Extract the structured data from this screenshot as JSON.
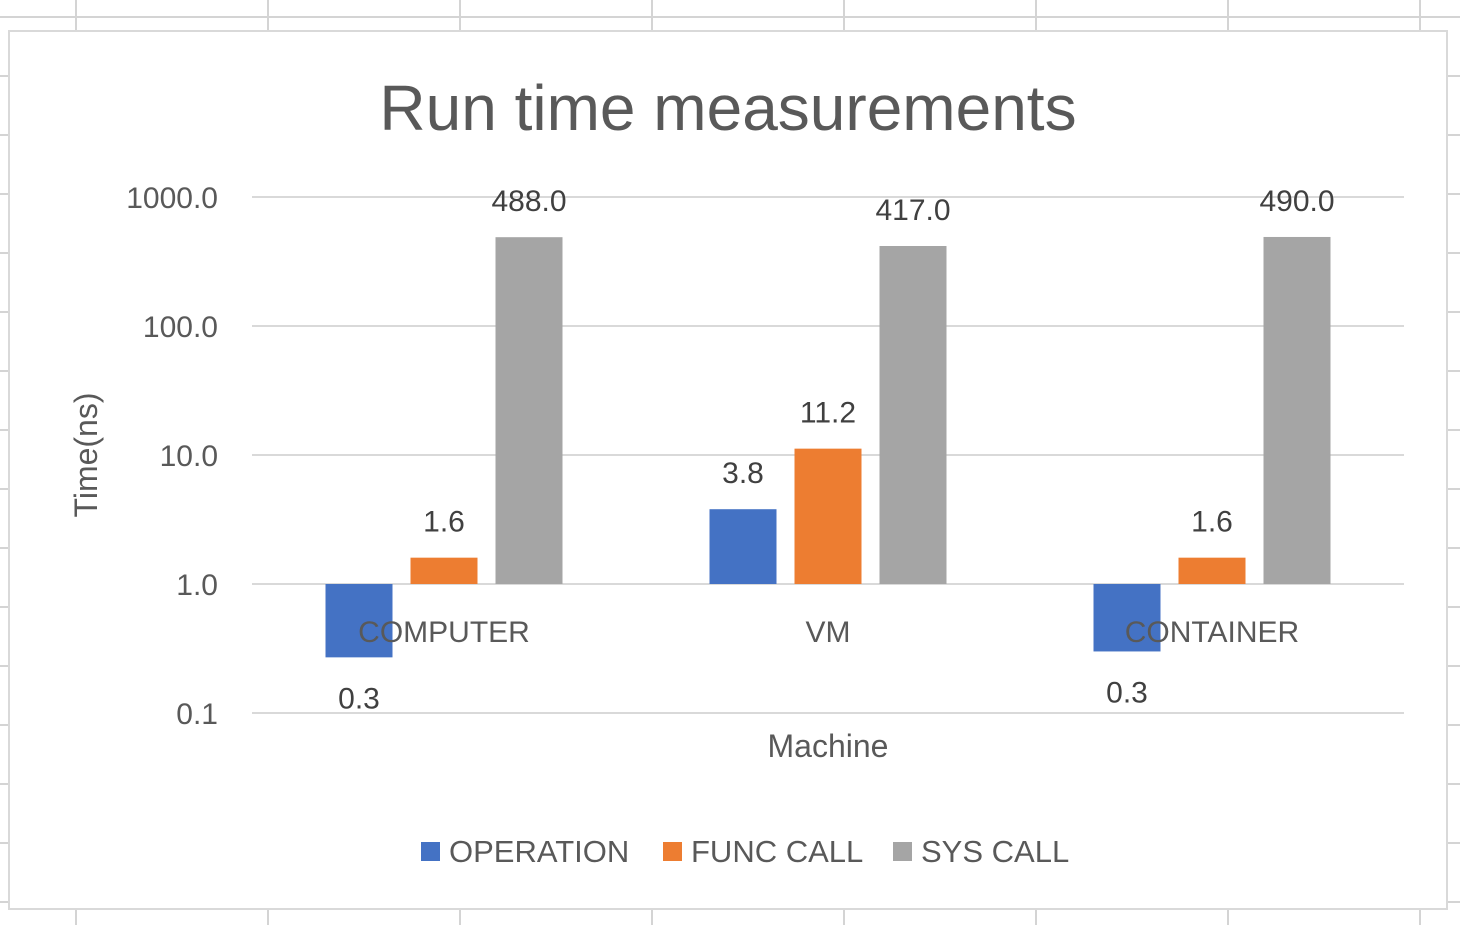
{
  "chart_data": {
    "type": "bar",
    "title": "Run time measurements",
    "xlabel": "Machine",
    "ylabel": "Time(ns)",
    "yscale": "log",
    "ylim": [
      0.1,
      1000
    ],
    "yticks": [
      "0.1",
      "1.0",
      "10.0",
      "100.0",
      "1000.0"
    ],
    "grid": true,
    "legend_position": "bottom",
    "categories": [
      "COMPUTER",
      "VM",
      "CONTAINER"
    ],
    "series": [
      {
        "name": "OPERATION",
        "color": "#4472c4",
        "values": [
          0.27,
          3.8,
          0.3
        ],
        "labels": [
          "0.3",
          "3.8",
          "0.3"
        ]
      },
      {
        "name": "FUNC CALL",
        "color": "#ed7d31",
        "values": [
          1.6,
          11.2,
          1.6
        ],
        "labels": [
          "1.6",
          "11.2",
          "1.6"
        ]
      },
      {
        "name": "SYS CALL",
        "color": "#a5a5a5",
        "values": [
          488.0,
          417.0,
          490.0
        ],
        "labels": [
          "488.0",
          "417.0",
          "490.0"
        ]
      }
    ]
  }
}
